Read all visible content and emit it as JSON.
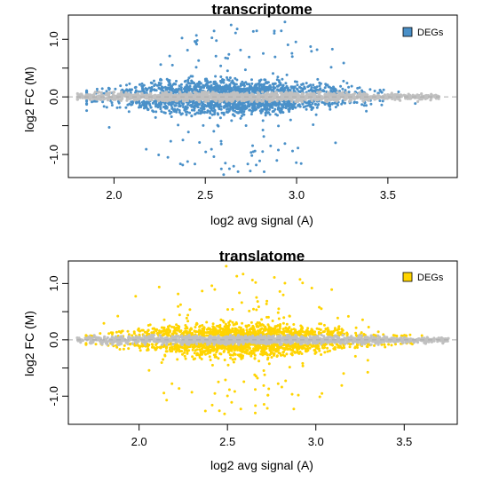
{
  "chart_data": [
    {
      "type": "scatter",
      "title": "transcriptome",
      "xlabel": "log2 avg signal (A)",
      "ylabel": "log2 FC (M)",
      "xlim": [
        1.75,
        3.88
      ],
      "ylim": [
        -1.4,
        1.42
      ],
      "xticks": [
        2.0,
        2.5,
        3.0,
        3.5
      ],
      "xtick_labels": [
        "2.0",
        "2.5",
        "3.0",
        "3.5"
      ],
      "yticks": [
        1.0,
        0.0,
        -1.0
      ],
      "ytick_labels": [
        "1.0",
        "0.0",
        "-1.0"
      ],
      "minor_yticks": [
        0.5,
        -0.5
      ],
      "reference_line": 0,
      "legend": {
        "label": "DEGs",
        "position": "top-right",
        "color": "#4a90c8"
      },
      "series": [
        {
          "name": "DEGs",
          "color": "#4a90c8",
          "x_range": [
            1.85,
            3.65
          ],
          "x_center": 2.65,
          "fc_min": 0.06,
          "spread_max": 0.48
        },
        {
          "name": "non-DEGs",
          "color": "#c0c0c0",
          "x_range": [
            1.8,
            3.78
          ],
          "band_max": 0.07
        }
      ],
      "grid": false
    },
    {
      "type": "scatter",
      "title": "translatome",
      "xlabel": "log2 avg signal (A)",
      "ylabel": "log2 FC (M)",
      "xlim": [
        1.6,
        3.8
      ],
      "ylim": [
        -1.5,
        1.4
      ],
      "xticks": [
        2.0,
        2.5,
        3.0,
        3.5
      ],
      "xtick_labels": [
        "2.0",
        "2.5",
        "3.0",
        "3.5"
      ],
      "yticks": [
        1.0,
        0.0,
        -1.0
      ],
      "ytick_labels": [
        "1.0",
        "0.0",
        "-1.0"
      ],
      "minor_yticks": [
        0.5,
        -0.5
      ],
      "reference_line": 0,
      "legend": {
        "label": "DEGs",
        "position": "top-right",
        "color": "#ffd400"
      },
      "series": [
        {
          "name": "DEGs",
          "color": "#ffd400",
          "x_range": [
            1.7,
            3.6
          ],
          "x_center": 2.6,
          "fc_min": 0.06,
          "spread_max": 0.48
        },
        {
          "name": "non-DEGs",
          "color": "#c0c0c0",
          "x_range": [
            1.65,
            3.75
          ],
          "band_max": 0.07
        }
      ],
      "grid": false
    }
  ]
}
